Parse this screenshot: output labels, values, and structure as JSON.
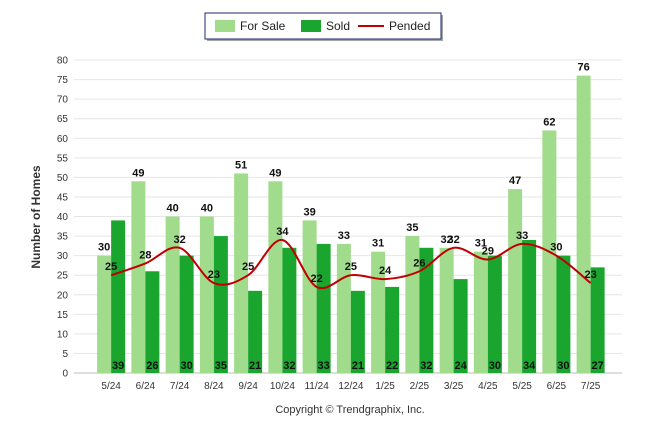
{
  "chart_data": {
    "type": "bar",
    "categories": [
      "5/24",
      "6/24",
      "7/24",
      "8/24",
      "9/24",
      "10/24",
      "11/24",
      "12/24",
      "1/25",
      "2/25",
      "3/25",
      "4/25",
      "5/25",
      "6/25",
      "7/25"
    ],
    "series": [
      {
        "name": "For Sale",
        "kind": "bar",
        "color": "#a0dc8c",
        "values": [
          30,
          49,
          40,
          40,
          51,
          49,
          39,
          33,
          31,
          35,
          32,
          31,
          47,
          62,
          76
        ]
      },
      {
        "name": "Sold",
        "kind": "bar",
        "color": "#1aa62e",
        "values": [
          39,
          26,
          30,
          35,
          21,
          32,
          33,
          21,
          22,
          32,
          24,
          30,
          34,
          30,
          27
        ]
      },
      {
        "name": "Pended",
        "kind": "line",
        "color": "#c00000",
        "values": [
          25,
          28,
          32,
          23,
          25,
          34,
          22,
          25,
          24,
          26,
          32,
          29,
          33,
          30,
          23
        ]
      }
    ],
    "ylabel": "Number of Homes",
    "xlabel": "",
    "ylim": [
      0,
      80
    ],
    "yticks": [
      0,
      5,
      10,
      15,
      20,
      25,
      30,
      35,
      40,
      45,
      50,
      55,
      60,
      65,
      70,
      75,
      80
    ],
    "grid": true,
    "legend_position": "top-center"
  },
  "credit": "Copyright © Trendgraphix, Inc."
}
